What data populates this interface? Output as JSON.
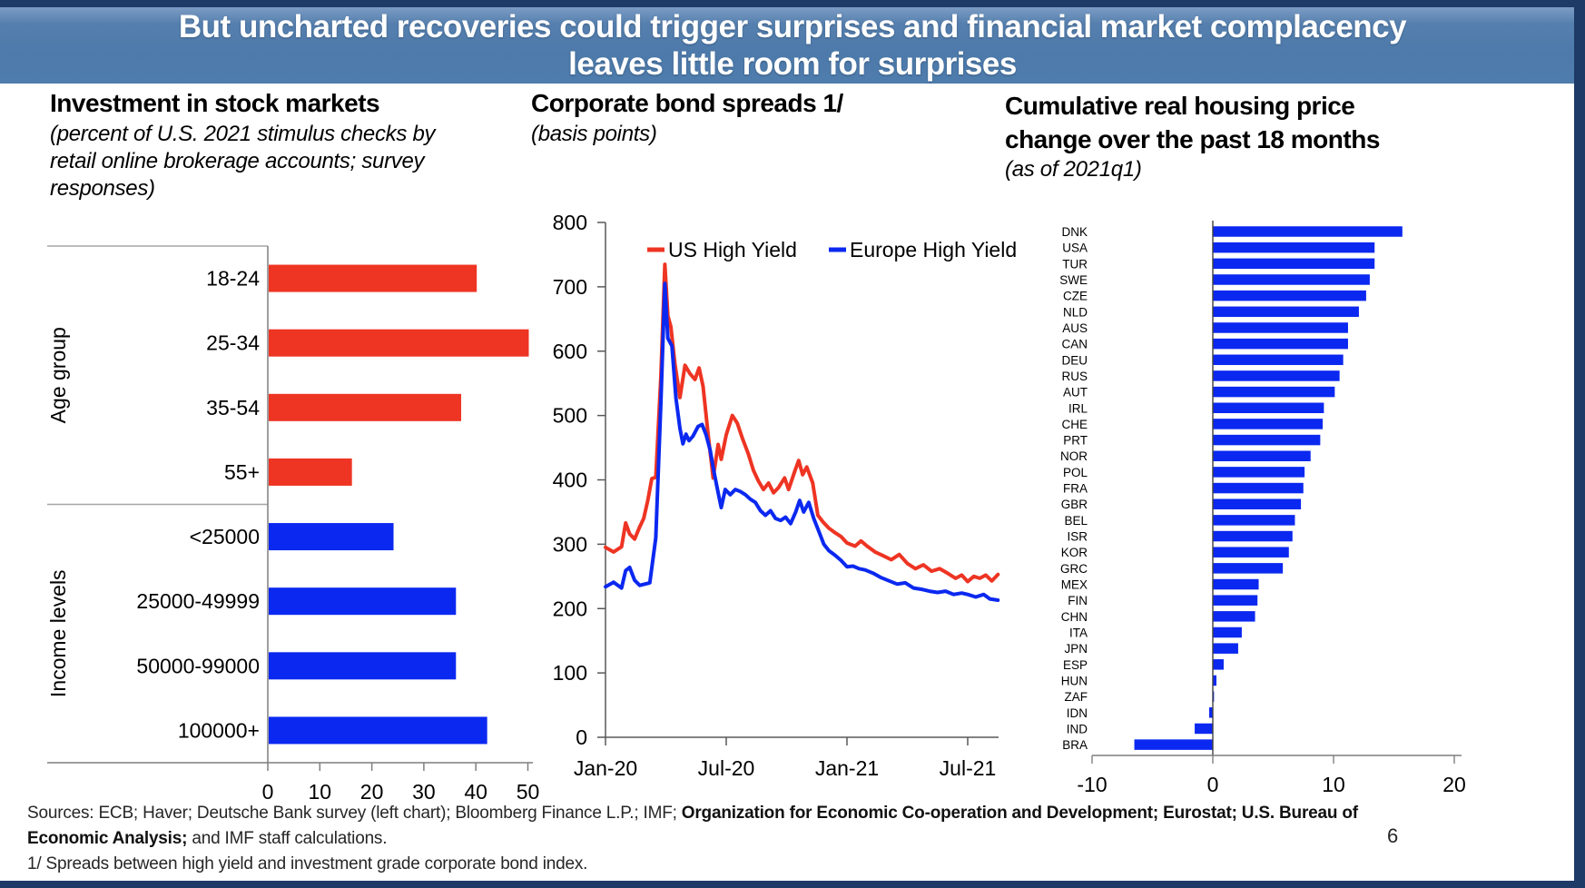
{
  "header": {
    "line1": "But uncharted recoveries could trigger surprises and financial market complacency",
    "line2": "leaves little room for surprises"
  },
  "footer": {
    "sources_regular1": "Sources: ECB; Haver; Deutsche Bank survey (left chart); Bloomberg Finance L.P.; IMF; ",
    "sources_bold1": "Organization for Economic Co-operation and Development; Eurostat; U.S. Bureau of",
    "sources_bold2": "Economic Analysis;",
    "sources_regular2": " and IMF staff calculations.",
    "footnote": "1/ Spreads between high yield and investment grade corporate bond index.",
    "page_number": "6"
  },
  "colors": {
    "red": "#ee3423",
    "blue": "#0b28f0",
    "navy": "#1e3a67",
    "header_blue": "#4e7cac",
    "box_gray": "#a6a6a6",
    "axis_gray": "#7f7f7f",
    "text": "#000000"
  },
  "chart_data": [
    {
      "type": "bar",
      "orientation": "horizontal",
      "title": "Investment in stock markets",
      "subtitle_lines": [
        "(percent of U.S. 2021 stimulus checks by",
        "retail online brokerage accounts; survey",
        "responses)"
      ],
      "xlim": [
        0,
        50
      ],
      "xticks": [
        0,
        10,
        20,
        30,
        40,
        50
      ],
      "grid": false,
      "groups": [
        {
          "label": "Age group",
          "color": "#ee3423",
          "categories": [
            "18-24",
            "25-34",
            "35-54",
            "55+"
          ],
          "values": [
            40,
            50,
            37,
            16
          ]
        },
        {
          "label": "Income levels",
          "color": "#0b28f0",
          "categories": [
            "<25000",
            "25000-49999",
            "50000-99000",
            "100000+"
          ],
          "values": [
            24,
            36,
            36,
            42
          ]
        }
      ]
    },
    {
      "type": "line",
      "title": "Corporate bond spreads 1/",
      "subtitle": "(basis points)",
      "ylim": [
        0,
        800
      ],
      "yticks": [
        0,
        100,
        200,
        300,
        400,
        500,
        600,
        700,
        800
      ],
      "xtick_labels": [
        "Jan-20",
        "Jul-20",
        "Jan-21",
        "Jul-21"
      ],
      "xtick_months": [
        0,
        6,
        12,
        18
      ],
      "x_range_months": [
        0,
        19.7
      ],
      "legend_position": "top-inside",
      "grid": false,
      "series": [
        {
          "name": "US High Yield",
          "color": "#ee3423",
          "points": [
            [
              0,
              295
            ],
            [
              0.4,
              288
            ],
            [
              0.8,
              296
            ],
            [
              1.0,
              333
            ],
            [
              1.2,
              316
            ],
            [
              1.45,
              308
            ],
            [
              1.7,
              327
            ],
            [
              1.9,
              340
            ],
            [
              2.1,
              368
            ],
            [
              2.3,
              402
            ],
            [
              2.5,
              404
            ],
            [
              2.75,
              560
            ],
            [
              2.95,
              735
            ],
            [
              3.1,
              655
            ],
            [
              3.25,
              638
            ],
            [
              3.45,
              580
            ],
            [
              3.7,
              528
            ],
            [
              3.95,
              578
            ],
            [
              4.2,
              565
            ],
            [
              4.45,
              556
            ],
            [
              4.65,
              574
            ],
            [
              4.85,
              545
            ],
            [
              5.1,
              470
            ],
            [
              5.35,
              403
            ],
            [
              5.6,
              455
            ],
            [
              5.75,
              432
            ],
            [
              6.0,
              470
            ],
            [
              6.3,
              500
            ],
            [
              6.55,
              488
            ],
            [
              6.8,
              465
            ],
            [
              7.1,
              440
            ],
            [
              7.35,
              415
            ],
            [
              7.6,
              398
            ],
            [
              7.85,
              385
            ],
            [
              8.1,
              395
            ],
            [
              8.35,
              380
            ],
            [
              8.6,
              388
            ],
            [
              8.9,
              403
            ],
            [
              9.1,
              385
            ],
            [
              9.4,
              413
            ],
            [
              9.6,
              430
            ],
            [
              9.8,
              408
            ],
            [
              10.0,
              420
            ],
            [
              10.3,
              395
            ],
            [
              10.55,
              345
            ],
            [
              10.8,
              335
            ],
            [
              11.1,
              325
            ],
            [
              11.4,
              318
            ],
            [
              11.7,
              312
            ],
            [
              12.0,
              302
            ],
            [
              12.4,
              297
            ],
            [
              12.7,
              305
            ],
            [
              13.0,
              297
            ],
            [
              13.4,
              288
            ],
            [
              13.8,
              282
            ],
            [
              14.2,
              276
            ],
            [
              14.6,
              284
            ],
            [
              15.0,
              270
            ],
            [
              15.4,
              262
            ],
            [
              15.8,
              268
            ],
            [
              16.2,
              258
            ],
            [
              16.6,
              262
            ],
            [
              17.0,
              255
            ],
            [
              17.4,
              247
            ],
            [
              17.7,
              252
            ],
            [
              18.0,
              242
            ],
            [
              18.3,
              250
            ],
            [
              18.6,
              247
            ],
            [
              18.9,
              252
            ],
            [
              19.2,
              243
            ],
            [
              19.5,
              253
            ]
          ]
        },
        {
          "name": "Europe High Yield",
          "color": "#0b28f0",
          "points": [
            [
              0,
              234
            ],
            [
              0.4,
              241
            ],
            [
              0.8,
              232
            ],
            [
              1.0,
              259
            ],
            [
              1.2,
              264
            ],
            [
              1.45,
              244
            ],
            [
              1.7,
              236
            ],
            [
              1.95,
              238
            ],
            [
              2.2,
              240
            ],
            [
              2.5,
              310
            ],
            [
              2.75,
              520
            ],
            [
              2.95,
              705
            ],
            [
              3.1,
              620
            ],
            [
              3.3,
              608
            ],
            [
              3.5,
              527
            ],
            [
              3.7,
              480
            ],
            [
              3.85,
              456
            ],
            [
              4.0,
              471
            ],
            [
              4.15,
              461
            ],
            [
              4.35,
              468
            ],
            [
              4.6,
              483
            ],
            [
              4.8,
              486
            ],
            [
              5.0,
              470
            ],
            [
              5.2,
              446
            ],
            [
              5.4,
              411
            ],
            [
              5.6,
              380
            ],
            [
              5.75,
              357
            ],
            [
              5.95,
              385
            ],
            [
              6.2,
              377
            ],
            [
              6.45,
              385
            ],
            [
              6.7,
              382
            ],
            [
              6.95,
              377
            ],
            [
              7.2,
              370
            ],
            [
              7.45,
              365
            ],
            [
              7.7,
              352
            ],
            [
              7.95,
              345
            ],
            [
              8.2,
              352
            ],
            [
              8.45,
              340
            ],
            [
              8.7,
              337
            ],
            [
              8.95,
              342
            ],
            [
              9.2,
              332
            ],
            [
              9.45,
              350
            ],
            [
              9.65,
              368
            ],
            [
              9.85,
              350
            ],
            [
              10.1,
              365
            ],
            [
              10.35,
              340
            ],
            [
              10.6,
              320
            ],
            [
              10.85,
              300
            ],
            [
              11.1,
              290
            ],
            [
              11.4,
              283
            ],
            [
              11.7,
              275
            ],
            [
              12.0,
              265
            ],
            [
              12.3,
              266
            ],
            [
              12.6,
              262
            ],
            [
              12.9,
              260
            ],
            [
              13.3,
              255
            ],
            [
              13.7,
              248
            ],
            [
              14.1,
              243
            ],
            [
              14.5,
              238
            ],
            [
              14.9,
              240
            ],
            [
              15.3,
              232
            ],
            [
              15.7,
              230
            ],
            [
              16.1,
              227
            ],
            [
              16.5,
              225
            ],
            [
              16.9,
              227
            ],
            [
              17.3,
              222
            ],
            [
              17.7,
              224
            ],
            [
              18.0,
              222
            ],
            [
              18.4,
              218
            ],
            [
              18.8,
              222
            ],
            [
              19.1,
              215
            ],
            [
              19.5,
              213
            ]
          ]
        }
      ]
    },
    {
      "type": "bar",
      "orientation": "horizontal",
      "title_lines": [
        "Cumulative real housing price",
        "change over the past 18 months"
      ],
      "subtitle": "(as of 2021q1)",
      "xlim": [
        -10,
        20
      ],
      "xticks": [
        -10,
        0,
        10,
        20
      ],
      "grid": false,
      "bar_color": "#0b28f0",
      "categories": [
        "DNK",
        "USA",
        "TUR",
        "SWE",
        "CZE",
        "NLD",
        "AUS",
        "CAN",
        "DEU",
        "RUS",
        "AUT",
        "IRL",
        "CHE",
        "PRT",
        "NOR",
        "POL",
        "FRA",
        "GBR",
        "BEL",
        "ISR",
        "KOR",
        "GRC",
        "MEX",
        "FIN",
        "CHN",
        "ITA",
        "JPN",
        "ESP",
        "HUN",
        "ZAF",
        "IDN",
        "IND",
        "BRA"
      ],
      "values": [
        15.7,
        13.4,
        13.4,
        13.0,
        12.7,
        12.1,
        11.2,
        11.2,
        10.8,
        10.5,
        10.1,
        9.2,
        9.1,
        8.9,
        8.1,
        7.6,
        7.5,
        7.3,
        6.8,
        6.6,
        6.3,
        5.8,
        3.8,
        3.7,
        3.5,
        2.4,
        2.1,
        0.9,
        0.3,
        0.1,
        -0.3,
        -1.5,
        -6.5
      ]
    }
  ]
}
